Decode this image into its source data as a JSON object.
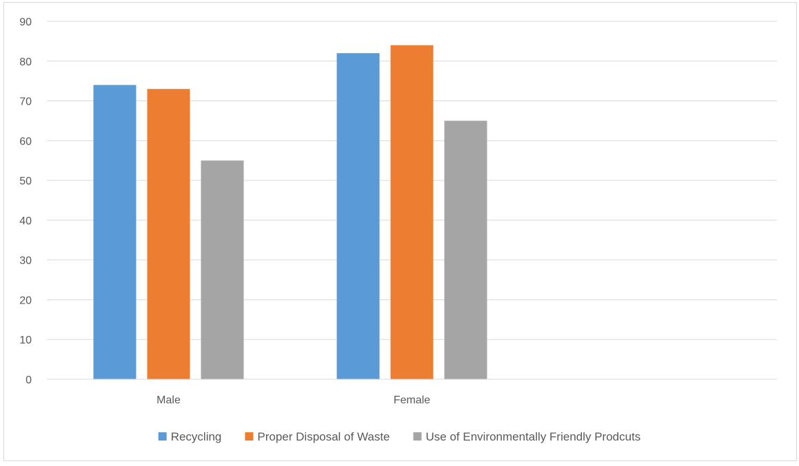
{
  "chart_data": {
    "type": "bar",
    "title": "",
    "xlabel": "",
    "ylabel": "",
    "categories": [
      "Male",
      "Female",
      ""
    ],
    "series": [
      {
        "name": "Recycling",
        "values": [
          74,
          82,
          null
        ],
        "color": "#5b9bd5"
      },
      {
        "name": "Proper Disposal of Waste",
        "values": [
          73,
          84,
          null
        ],
        "color": "#ed7d31"
      },
      {
        "name": "Use of Environmentally Friendly Prodcuts",
        "values": [
          55,
          65,
          null
        ],
        "color": "#a5a5a5"
      }
    ],
    "ylim": [
      0,
      90
    ],
    "yticks": [
      "0",
      "10",
      "20",
      "30",
      "40",
      "50",
      "60",
      "70",
      "80",
      "90"
    ],
    "grid": true,
    "legend_position": "bottom"
  }
}
